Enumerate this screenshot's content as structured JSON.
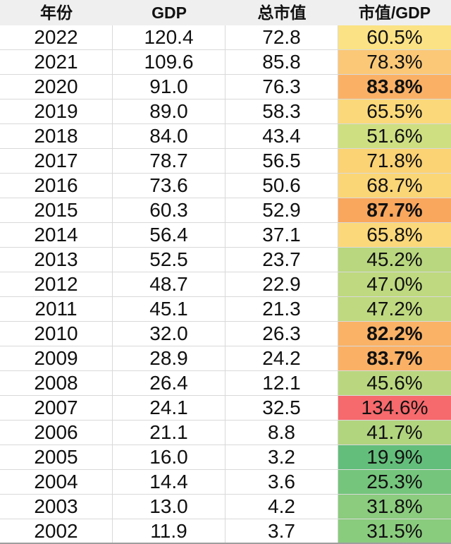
{
  "chart_data": {
    "type": "table",
    "title": "",
    "columns": [
      "年份",
      "GDP",
      "总市值",
      "市值/GDP"
    ],
    "rows": [
      [
        2022,
        120.4,
        72.8,
        "60.5%"
      ],
      [
        2021,
        109.6,
        85.8,
        "78.3%"
      ],
      [
        2020,
        91.0,
        76.3,
        "83.8%"
      ],
      [
        2019,
        89.0,
        58.3,
        "65.5%"
      ],
      [
        2018,
        84.0,
        43.4,
        "51.6%"
      ],
      [
        2017,
        78.7,
        56.5,
        "71.8%"
      ],
      [
        2016,
        73.6,
        50.6,
        "68.7%"
      ],
      [
        2015,
        60.3,
        52.9,
        "87.7%"
      ],
      [
        2014,
        56.4,
        37.1,
        "65.8%"
      ],
      [
        2013,
        52.5,
        23.7,
        "45.2%"
      ],
      [
        2012,
        48.7,
        22.9,
        "47.0%"
      ],
      [
        2011,
        45.1,
        21.3,
        "47.2%"
      ],
      [
        2010,
        32.0,
        26.3,
        "82.2%"
      ],
      [
        2009,
        28.9,
        24.2,
        "83.7%"
      ],
      [
        2008,
        26.4,
        12.1,
        "45.6%"
      ],
      [
        2007,
        24.1,
        32.5,
        "134.6%"
      ],
      [
        2006,
        21.1,
        8.8,
        "41.7%"
      ],
      [
        2005,
        16.0,
        3.2,
        "19.9%"
      ],
      [
        2004,
        14.4,
        3.6,
        "25.3%"
      ],
      [
        2003,
        13.0,
        4.2,
        "31.8%"
      ],
      [
        2002,
        11.9,
        3.7,
        "31.5%"
      ]
    ],
    "legend": "ratio column uses green-yellow-red conditional color scale (low=green, high=red)"
  },
  "header": {
    "year": "年份",
    "gdp": "GDP",
    "market_cap": "总市值",
    "ratio": "市值/GDP"
  },
  "rows": [
    {
      "year": "2022",
      "gdp": "120.4",
      "market_cap": "72.8",
      "ratio": "60.5%",
      "ratio_bg": "#FBE284",
      "ratio_bold": false
    },
    {
      "year": "2021",
      "gdp": "109.6",
      "market_cap": "85.8",
      "ratio": "78.3%",
      "ratio_bg": "#FBC877",
      "ratio_bold": false
    },
    {
      "year": "2020",
      "gdp": "91.0",
      "market_cap": "76.3",
      "ratio": "83.8%",
      "ratio_bg": "#FAB166",
      "ratio_bold": true
    },
    {
      "year": "2019",
      "gdp": "89.0",
      "market_cap": "58.3",
      "ratio": "65.5%",
      "ratio_bg": "#FBD97A",
      "ratio_bold": false
    },
    {
      "year": "2018",
      "gdp": "84.0",
      "market_cap": "43.4",
      "ratio": "51.6%",
      "ratio_bg": "#CEDF82",
      "ratio_bold": false
    },
    {
      "year": "2017",
      "gdp": "78.7",
      "market_cap": "56.5",
      "ratio": "71.8%",
      "ratio_bg": "#FBD274",
      "ratio_bold": false
    },
    {
      "year": "2016",
      "gdp": "73.6",
      "market_cap": "50.6",
      "ratio": "68.7%",
      "ratio_bg": "#FBD677",
      "ratio_bold": false
    },
    {
      "year": "2015",
      "gdp": "60.3",
      "market_cap": "52.9",
      "ratio": "87.7%",
      "ratio_bg": "#F9A75D",
      "ratio_bold": true
    },
    {
      "year": "2014",
      "gdp": "56.4",
      "market_cap": "37.1",
      "ratio": "65.8%",
      "ratio_bg": "#FBD87A",
      "ratio_bold": false
    },
    {
      "year": "2013",
      "gdp": "52.5",
      "market_cap": "23.7",
      "ratio": "45.2%",
      "ratio_bg": "#B9D77F",
      "ratio_bold": false
    },
    {
      "year": "2012",
      "gdp": "48.7",
      "market_cap": "22.9",
      "ratio": "47.0%",
      "ratio_bg": "#BED97F",
      "ratio_bold": false
    },
    {
      "year": "2011",
      "gdp": "45.1",
      "market_cap": "21.3",
      "ratio": "47.2%",
      "ratio_bg": "#BFD980",
      "ratio_bold": false
    },
    {
      "year": "2010",
      "gdp": "32.0",
      "market_cap": "26.3",
      "ratio": "82.2%",
      "ratio_bg": "#FAB266",
      "ratio_bold": true
    },
    {
      "year": "2009",
      "gdp": "28.9",
      "market_cap": "24.2",
      "ratio": "83.7%",
      "ratio_bg": "#FAB166",
      "ratio_bold": true
    },
    {
      "year": "2008",
      "gdp": "26.4",
      "market_cap": "12.1",
      "ratio": "45.6%",
      "ratio_bg": "#BAD77F",
      "ratio_bold": false
    },
    {
      "year": "2007",
      "gdp": "24.1",
      "market_cap": "32.5",
      "ratio": "134.6%",
      "ratio_bg": "#F6696C",
      "ratio_bold": false
    },
    {
      "year": "2006",
      "gdp": "21.1",
      "market_cap": "8.8",
      "ratio": "41.7%",
      "ratio_bg": "#B1D47E",
      "ratio_bold": false
    },
    {
      "year": "2005",
      "gdp": "16.0",
      "market_cap": "3.2",
      "ratio": "19.9%",
      "ratio_bg": "#63BE7B",
      "ratio_bold": false
    },
    {
      "year": "2004",
      "gdp": "14.4",
      "market_cap": "3.6",
      "ratio": "25.3%",
      "ratio_bg": "#75C57D",
      "ratio_bold": false
    },
    {
      "year": "2003",
      "gdp": "13.0",
      "market_cap": "4.2",
      "ratio": "31.8%",
      "ratio_bg": "#8BCC7E",
      "ratio_bold": false
    },
    {
      "year": "2002",
      "gdp": "11.9",
      "market_cap": "3.7",
      "ratio": "31.5%",
      "ratio_bg": "#8ACC7E",
      "ratio_bold": false
    }
  ],
  "colors": {
    "header_bg": "#EFEFEF",
    "grid": "#D9D9D9",
    "bottom_border": "#9E9E9E",
    "text": "#111111"
  }
}
